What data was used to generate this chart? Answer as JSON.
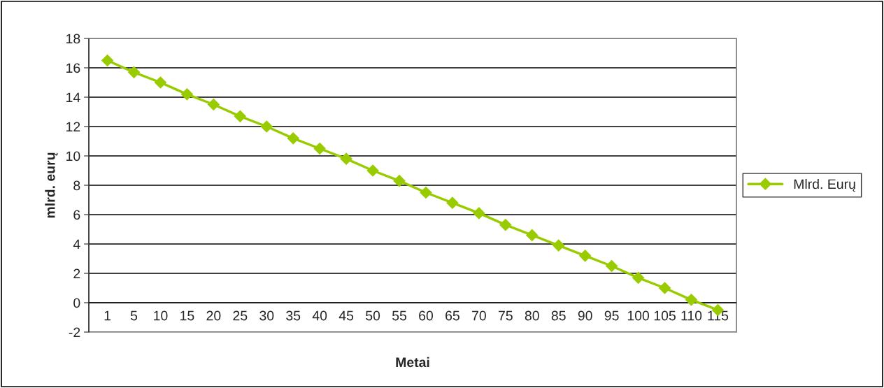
{
  "chart_data": {
    "type": "line",
    "xlabel": "Metai",
    "ylabel": "mlrd. eurų",
    "categories": [
      "1",
      "5",
      "10",
      "15",
      "20",
      "25",
      "30",
      "35",
      "40",
      "45",
      "50",
      "55",
      "60",
      "65",
      "70",
      "75",
      "80",
      "85",
      "90",
      "95",
      "100",
      "105",
      "110",
      "115"
    ],
    "series": [
      {
        "name": "Mlrd. Eurų",
        "color": "#99cc00",
        "values": [
          16.5,
          15.7,
          15.0,
          14.2,
          13.5,
          12.7,
          12.0,
          11.2,
          10.5,
          9.8,
          9.0,
          8.3,
          7.5,
          6.8,
          6.1,
          5.3,
          4.6,
          3.9,
          3.2,
          2.5,
          1.7,
          1.0,
          0.2,
          -0.5
        ]
      }
    ],
    "ylim": [
      -2,
      18
    ],
    "yticks": [
      -2,
      0,
      2,
      4,
      6,
      8,
      10,
      12,
      14,
      16,
      18
    ],
    "grid": "y",
    "legend": "right",
    "marker": "diamond",
    "line_style": "solid"
  }
}
